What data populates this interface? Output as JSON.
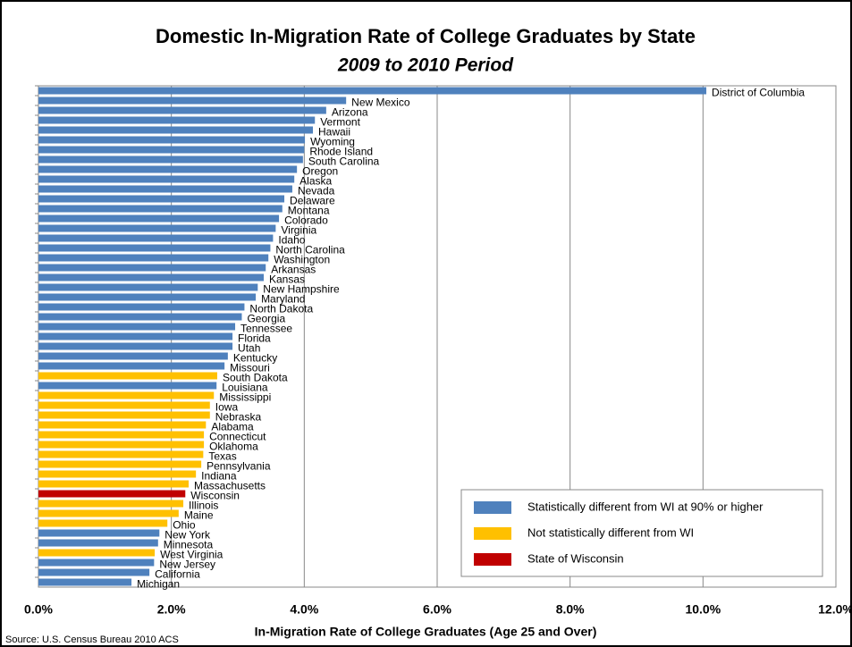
{
  "chart_data": {
    "type": "bar",
    "orientation": "horizontal",
    "title": "Domestic In-Migration Rate of College Graduates by State",
    "subtitle": "2009 to 2010 Period",
    "x_label": "In-Migration Rate of College Graduates (Age 25 and Over)",
    "source": "Source: U.S. Census Bureau 2010 ACS",
    "categories": [
      "District of Columbia",
      "New Mexico",
      "Arizona",
      "Vermont",
      "Hawaii",
      "Wyoming",
      "Rhode Island",
      "South Carolina",
      "Oregon",
      "Alaska",
      "Nevada",
      "Delaware",
      "Montana",
      "Colorado",
      "Virginia",
      "Idaho",
      "North Carolina",
      "Washington",
      "Arkansas",
      "Kansas",
      "New Hampshire",
      "Maryland",
      "North Dakota",
      "Georgia",
      "Tennessee",
      "Florida",
      "Utah",
      "Kentucky",
      "Missouri",
      "South Dakota",
      "Louisiana",
      "Mississippi",
      "Iowa",
      "Nebraska",
      "Alabama",
      "Connecticut",
      "Oklahoma",
      "Texas",
      "Pennsylvania",
      "Indiana",
      "Massachusetts",
      "Wisconsin",
      "Illinois",
      "Maine",
      "Ohio",
      "New York",
      "Minnesota",
      "West Virginia",
      "New Jersey",
      "California",
      "Michigan"
    ],
    "series": [
      {
        "name": "Statistically different from WI at 90% or higher",
        "color": "#4f81bd",
        "values": [
          10.05,
          4.63,
          4.33,
          4.16,
          4.13,
          4.01,
          4.0,
          3.98,
          3.89,
          3.85,
          3.82,
          3.7,
          3.67,
          3.62,
          3.57,
          3.53,
          3.49,
          3.46,
          3.42,
          3.39,
          3.3,
          3.27,
          3.1,
          3.06,
          2.96,
          2.92,
          2.92,
          2.85,
          2.8,
          null,
          2.68,
          null,
          null,
          null,
          null,
          null,
          null,
          null,
          null,
          null,
          null,
          null,
          null,
          null,
          null,
          1.82,
          1.8,
          null,
          1.74,
          1.67,
          1.4
        ]
      },
      {
        "name": "Not statistically different from WI",
        "color": "#ffc000",
        "values": [
          null,
          null,
          null,
          null,
          null,
          null,
          null,
          null,
          null,
          null,
          null,
          null,
          null,
          null,
          null,
          null,
          null,
          null,
          null,
          null,
          null,
          null,
          null,
          null,
          null,
          null,
          null,
          null,
          null,
          2.69,
          null,
          2.64,
          2.58,
          2.58,
          2.52,
          2.49,
          2.49,
          2.48,
          2.45,
          2.37,
          2.26,
          null,
          2.18,
          2.11,
          1.94,
          null,
          null,
          1.75,
          null,
          null,
          null
        ]
      },
      {
        "name": "State of Wisconsin",
        "color": "#c00000",
        "values": [
          null,
          null,
          null,
          null,
          null,
          null,
          null,
          null,
          null,
          null,
          null,
          null,
          null,
          null,
          null,
          null,
          null,
          null,
          null,
          null,
          null,
          null,
          null,
          null,
          null,
          null,
          null,
          null,
          null,
          null,
          null,
          null,
          null,
          null,
          null,
          null,
          null,
          null,
          null,
          null,
          null,
          2.21,
          null,
          null,
          null,
          null,
          null,
          null,
          null,
          null,
          null
        ]
      }
    ],
    "xlim": [
      0,
      12
    ],
    "xticks": [
      {
        "value": 0,
        "label": "0.0%"
      },
      {
        "value": 2,
        "label": "2.0%"
      },
      {
        "value": 4,
        "label": "4.0%"
      },
      {
        "value": 6,
        "label": "6.0%"
      },
      {
        "value": 8,
        "label": "8.0%"
      },
      {
        "value": 10,
        "label": "10.0%"
      },
      {
        "value": 12,
        "label": "12.0%"
      }
    ],
    "grid": true,
    "legend": "lower right"
  }
}
